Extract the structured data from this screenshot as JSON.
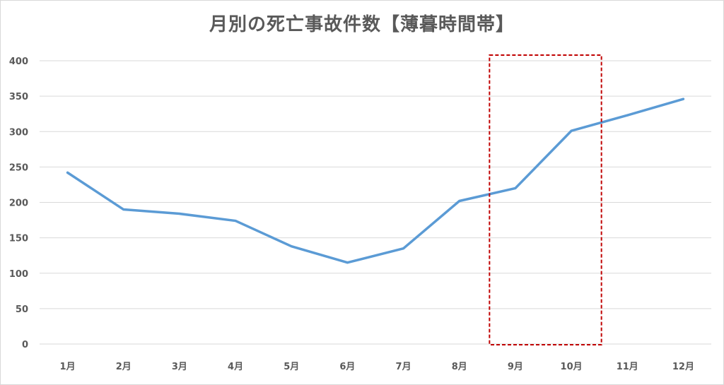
{
  "chart_data": {
    "type": "line",
    "title": "月別の死亡事故件数【薄暮時間帯】",
    "xlabel": "",
    "ylabel": "",
    "categories": [
      "1月",
      "2月",
      "3月",
      "4月",
      "5月",
      "6月",
      "7月",
      "8月",
      "9月",
      "10月",
      "11月",
      "12月"
    ],
    "series": [
      {
        "values": [
          242,
          190,
          184,
          174,
          138,
          115,
          135,
          202,
          220,
          301,
          323,
          346
        ],
        "color": "#5b9bd5"
      }
    ],
    "ylim": [
      0,
      400
    ],
    "yticks": [
      "0",
      "50",
      "100",
      "150",
      "200",
      "250",
      "300",
      "350",
      "400"
    ],
    "grid": true,
    "gridColor": "#d9d9d9",
    "legend": "none",
    "highlight": {
      "categories": [
        "9月",
        "10月"
      ],
      "color": "#c00000",
      "style": "dashed"
    }
  }
}
